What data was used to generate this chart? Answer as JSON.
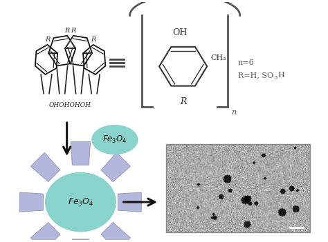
{
  "bg_color": "#ffffff",
  "oh_label": "OH",
  "ch2_label": "CH₂",
  "r_bottom_label": "R",
  "n_label": "n",
  "n6_text": "n=6",
  "fe3o4_label": "Fe$_3$O$_4$",
  "arrow_color": "#111111",
  "teal_color": "#88d4cc",
  "lavender_color": "#aab0d8",
  "text_color": "#333333",
  "calix_text": "OHOHOHOH"
}
